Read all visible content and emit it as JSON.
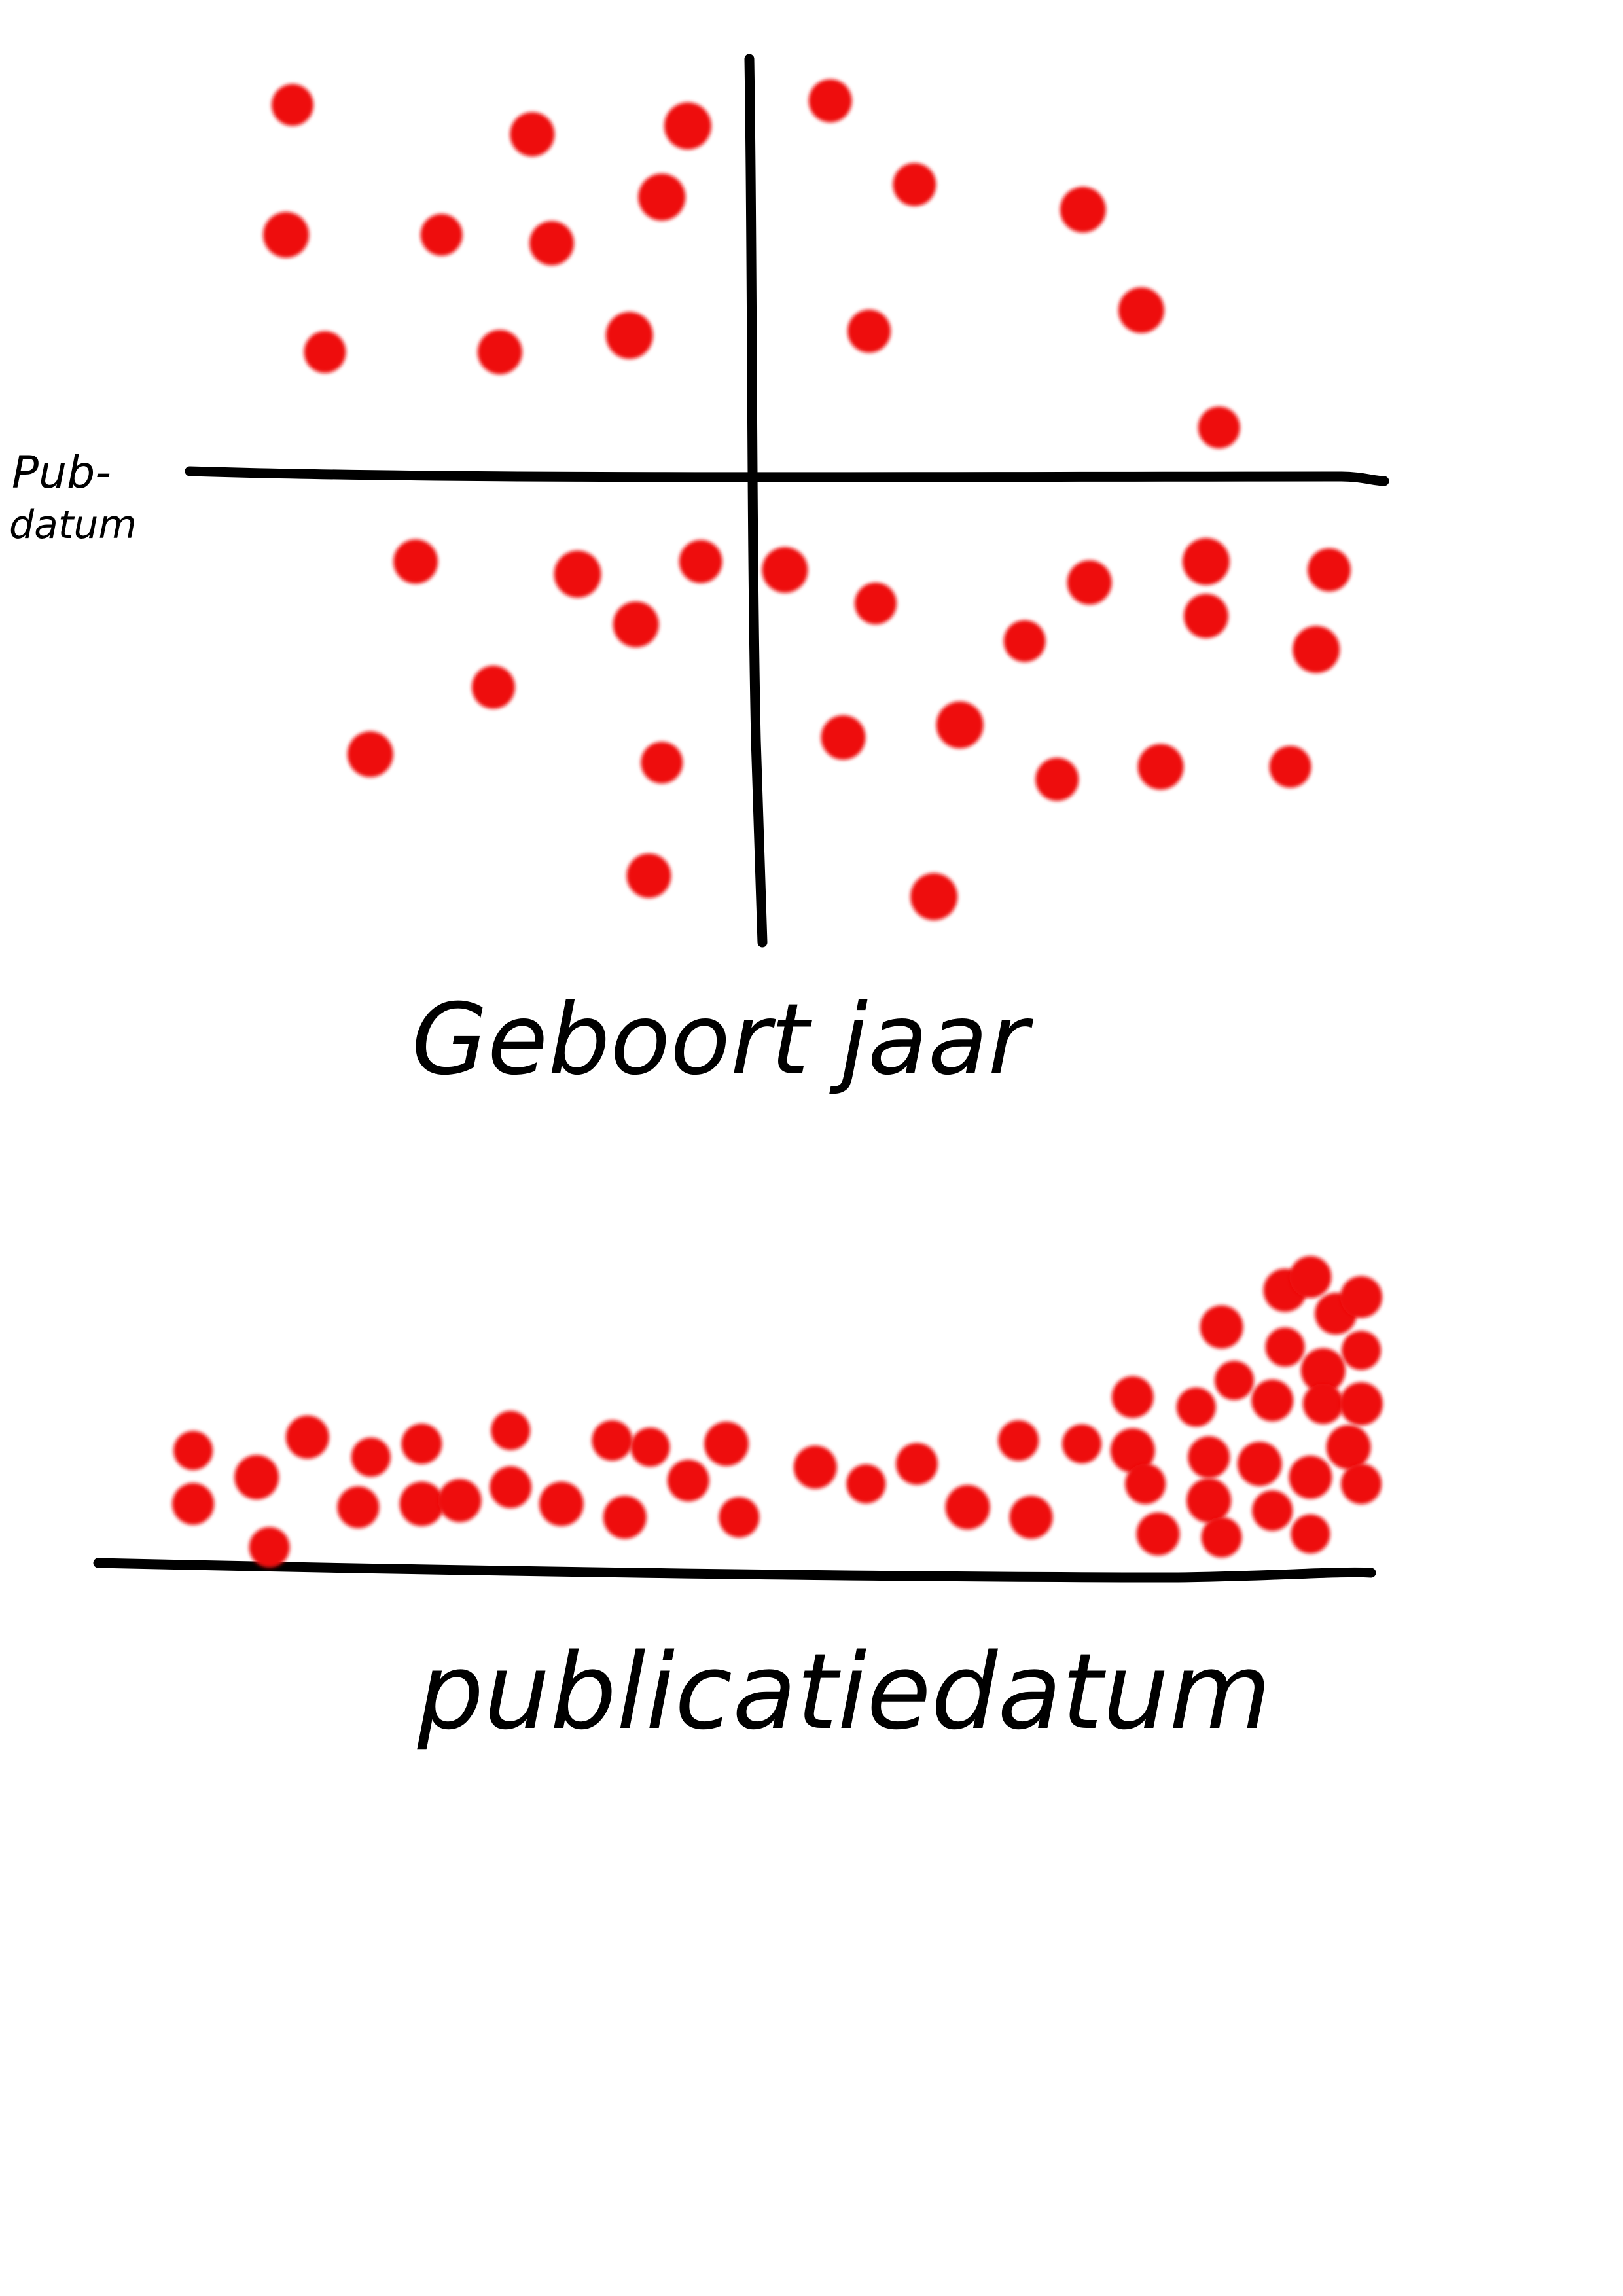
{
  "colors": {
    "dot": "#ee1111",
    "ink": "#000000",
    "background": "#ffffff"
  },
  "chart_data": [
    {
      "type": "scatter",
      "title": "",
      "xlabel": "Geboort jaar",
      "ylabel": "Pub- datum",
      "ylabel_lines": [
        "Pub-",
        "datum"
      ],
      "xlim": [
        -10,
        10
      ],
      "ylim": [
        -10,
        10
      ],
      "grid": false,
      "axes": "crossed-at-origin",
      "points": [
        {
          "x": -7.0,
          "y": 8.9
        },
        {
          "x": -3.3,
          "y": 8.2
        },
        {
          "x": -0.9,
          "y": 8.4
        },
        {
          "x": 1.3,
          "y": 9.0
        },
        {
          "x": -7.1,
          "y": 5.8
        },
        {
          "x": -4.7,
          "y": 5.8
        },
        {
          "x": -3.0,
          "y": 5.6
        },
        {
          "x": -1.3,
          "y": 6.7
        },
        {
          "x": 2.6,
          "y": 7.0
        },
        {
          "x": 5.2,
          "y": 6.4
        },
        {
          "x": -6.5,
          "y": 3.0
        },
        {
          "x": -3.8,
          "y": 3.0
        },
        {
          "x": -1.8,
          "y": 3.4
        },
        {
          "x": 1.9,
          "y": 3.5
        },
        {
          "x": 6.1,
          "y": 4.0
        },
        {
          "x": 7.3,
          "y": 1.2
        },
        {
          "x": -5.1,
          "y": -2.0
        },
        {
          "x": -2.6,
          "y": -2.3
        },
        {
          "x": -0.7,
          "y": -2.0
        },
        {
          "x": 0.6,
          "y": -2.2
        },
        {
          "x": 2.0,
          "y": -3.0
        },
        {
          "x": 5.3,
          "y": -2.5
        },
        {
          "x": 7.1,
          "y": -2.0
        },
        {
          "x": 9.0,
          "y": -2.2
        },
        {
          "x": -1.7,
          "y": -3.5
        },
        {
          "x": 4.3,
          "y": -3.9
        },
        {
          "x": 7.1,
          "y": -3.3
        },
        {
          "x": 8.8,
          "y": -4.1
        },
        {
          "x": -3.9,
          "y": -5.0
        },
        {
          "x": -5.8,
          "y": -6.6
        },
        {
          "x": -1.3,
          "y": -6.8
        },
        {
          "x": 1.5,
          "y": -6.2
        },
        {
          "x": 3.3,
          "y": -5.9
        },
        {
          "x": 4.8,
          "y": -7.2
        },
        {
          "x": 6.4,
          "y": -6.9
        },
        {
          "x": 8.4,
          "y": -6.9
        },
        {
          "x": -1.5,
          "y": -9.5
        },
        {
          "x": 2.9,
          "y": -10.0
        }
      ]
    },
    {
      "type": "scatter",
      "title": "",
      "xlabel": "publicatiedatum",
      "ylabel": "",
      "xlim": [
        0,
        100
      ],
      "ylim": [
        0,
        100
      ],
      "grid": false,
      "axes": "x-only",
      "points": [
        {
          "x": 8,
          "y": 38
        },
        {
          "x": 8,
          "y": 22
        },
        {
          "x": 13,
          "y": 30
        },
        {
          "x": 14,
          "y": 9
        },
        {
          "x": 17,
          "y": 42
        },
        {
          "x": 22,
          "y": 36
        },
        {
          "x": 21,
          "y": 21
        },
        {
          "x": 26,
          "y": 22
        },
        {
          "x": 26,
          "y": 40
        },
        {
          "x": 29,
          "y": 23
        },
        {
          "x": 33,
          "y": 44
        },
        {
          "x": 33,
          "y": 27
        },
        {
          "x": 37,
          "y": 22
        },
        {
          "x": 41,
          "y": 41
        },
        {
          "x": 42,
          "y": 18
        },
        {
          "x": 44,
          "y": 39
        },
        {
          "x": 47,
          "y": 29
        },
        {
          "x": 50,
          "y": 40
        },
        {
          "x": 51,
          "y": 18
        },
        {
          "x": 57,
          "y": 33
        },
        {
          "x": 61,
          "y": 28
        },
        {
          "x": 65,
          "y": 34
        },
        {
          "x": 69,
          "y": 21
        },
        {
          "x": 73,
          "y": 41
        },
        {
          "x": 74,
          "y": 18
        },
        {
          "x": 78,
          "y": 40
        },
        {
          "x": 82,
          "y": 54
        },
        {
          "x": 82,
          "y": 38
        },
        {
          "x": 83,
          "y": 28
        },
        {
          "x": 84,
          "y": 13
        },
        {
          "x": 87,
          "y": 51
        },
        {
          "x": 88,
          "y": 36
        },
        {
          "x": 88,
          "y": 23
        },
        {
          "x": 89,
          "y": 12
        },
        {
          "x": 89,
          "y": 75
        },
        {
          "x": 90,
          "y": 59
        },
        {
          "x": 93,
          "y": 53
        },
        {
          "x": 92,
          "y": 34
        },
        {
          "x": 93,
          "y": 20
        },
        {
          "x": 94,
          "y": 86
        },
        {
          "x": 94,
          "y": 69
        },
        {
          "x": 96,
          "y": 90
        },
        {
          "x": 97,
          "y": 62
        },
        {
          "x": 97,
          "y": 52
        },
        {
          "x": 96,
          "y": 30
        },
        {
          "x": 96,
          "y": 13
        },
        {
          "x": 98,
          "y": 79
        },
        {
          "x": 99,
          "y": 39
        },
        {
          "x": 100,
          "y": 28
        },
        {
          "x": 100,
          "y": 52
        },
        {
          "x": 100,
          "y": 68
        },
        {
          "x": 100,
          "y": 84
        }
      ]
    }
  ]
}
